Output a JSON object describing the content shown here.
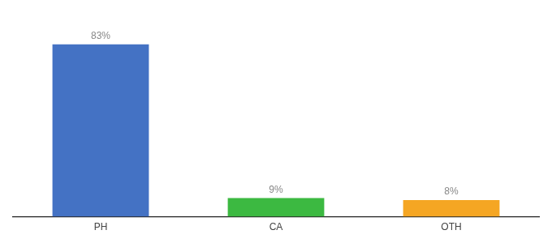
{
  "chart_data": {
    "type": "bar",
    "categories": [
      "PH",
      "CA",
      "OTH"
    ],
    "values": [
      83,
      9,
      8
    ],
    "value_labels": [
      "83%",
      "9%",
      "8%"
    ],
    "colors": [
      "#4472c4",
      "#3cb941",
      "#f5a623"
    ],
    "ylim": [
      0,
      95
    ],
    "data_labels": true,
    "tick_labels": "x",
    "grid": false
  }
}
